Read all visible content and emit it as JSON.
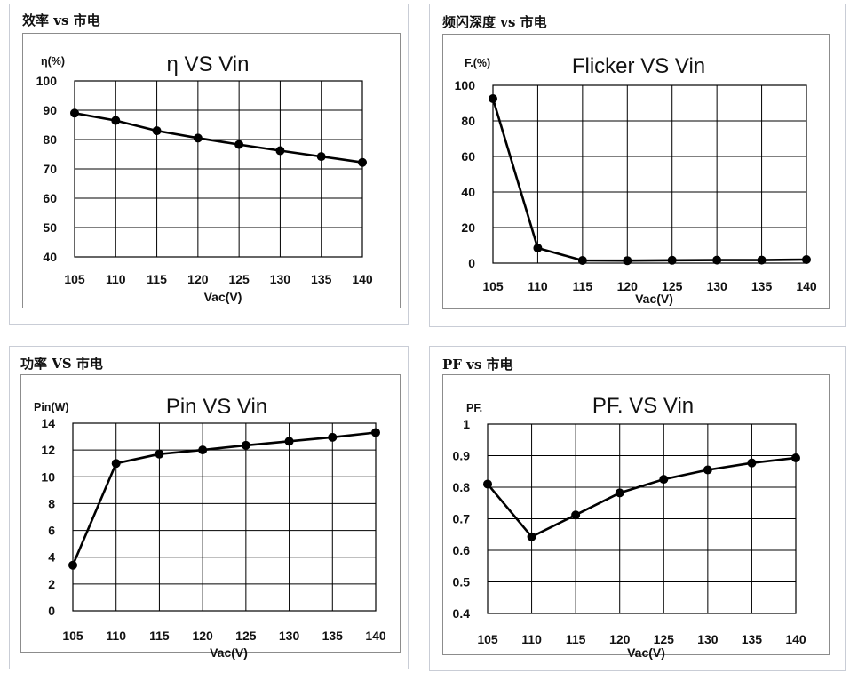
{
  "panels": [
    {
      "heading": "效率 vs 市电"
    },
    {
      "heading": "频闪深度 vs 市电"
    },
    {
      "heading": "功率 VS 市电"
    },
    {
      "heading": "PF vs 市电"
    }
  ],
  "chart_data": [
    {
      "type": "line",
      "title": "η VS Vin",
      "ylabel": "η(%)",
      "xlabel": "Vac(V)",
      "x": [
        105,
        110,
        115,
        120,
        125,
        130,
        135,
        140
      ],
      "x_tick_labels": [
        "105",
        "110",
        "115",
        "120",
        "125",
        "130",
        "135",
        "140"
      ],
      "ylim": [
        40,
        100
      ],
      "y_ticks": [
        40,
        50,
        60,
        70,
        80,
        90,
        100
      ],
      "y_tick_labels": [
        "40",
        "50",
        "60",
        "70",
        "80",
        "90",
        "100"
      ],
      "grid": true,
      "series": [
        {
          "values": [
            89,
            86.5,
            83,
            80.5,
            78.3,
            76.2,
            74.2,
            72.2
          ]
        }
      ],
      "line_color": "#000000"
    },
    {
      "type": "line",
      "title": "Flicker VS Vin",
      "ylabel": "F.(%)",
      "xlabel": "Vac(V)",
      "x": [
        105,
        110,
        115,
        120,
        125,
        130,
        135,
        140
      ],
      "x_tick_labels": [
        "105",
        "110",
        "115",
        "120",
        "125",
        "130",
        "135",
        "140"
      ],
      "ylim": [
        0,
        100
      ],
      "y_ticks": [
        0,
        20,
        40,
        60,
        80,
        100
      ],
      "y_tick_labels": [
        "0",
        "20",
        "40",
        "60",
        "80",
        "100"
      ],
      "grid": true,
      "series": [
        {
          "values": [
            92.5,
            8.5,
            1.5,
            1.4,
            1.6,
            1.7,
            1.7,
            2.0
          ]
        }
      ],
      "line_color": "#000000"
    },
    {
      "type": "line",
      "title": "Pin VS Vin",
      "ylabel": "Pin(W)",
      "xlabel": "Vac(V)",
      "x": [
        105,
        110,
        115,
        120,
        125,
        130,
        135,
        140
      ],
      "x_tick_labels": [
        "105",
        "110",
        "115",
        "120",
        "125",
        "130",
        "135",
        "140"
      ],
      "ylim": [
        0,
        14
      ],
      "y_ticks": [
        0,
        2,
        4,
        6,
        8,
        10,
        12,
        14
      ],
      "y_tick_labels": [
        "0",
        "2",
        "4",
        "6",
        "8",
        "10",
        "12",
        "14"
      ],
      "grid": true,
      "series": [
        {
          "values": [
            3.4,
            11.0,
            11.7,
            12.0,
            12.35,
            12.65,
            12.95,
            13.3
          ]
        }
      ],
      "line_color": "#000000"
    },
    {
      "type": "line",
      "title": "PF. VS Vin",
      "ylabel": "PF.",
      "xlabel": "Vac(V)",
      "x": [
        105,
        110,
        115,
        120,
        125,
        130,
        135,
        140
      ],
      "x_tick_labels": [
        "105",
        "110",
        "115",
        "120",
        "125",
        "130",
        "135",
        "140"
      ],
      "ylim": [
        0.4,
        1.0
      ],
      "y_ticks": [
        0.4,
        0.5,
        0.6,
        0.7,
        0.8,
        0.9,
        1.0
      ],
      "y_tick_labels": [
        "0.4",
        "0.5",
        "0.6",
        "0.7",
        "0.8",
        "0.9",
        "1"
      ],
      "grid": true,
      "series": [
        {
          "values": [
            0.81,
            0.643,
            0.712,
            0.782,
            0.825,
            0.855,
            0.877,
            0.893
          ]
        }
      ],
      "line_color": "#000000"
    }
  ]
}
